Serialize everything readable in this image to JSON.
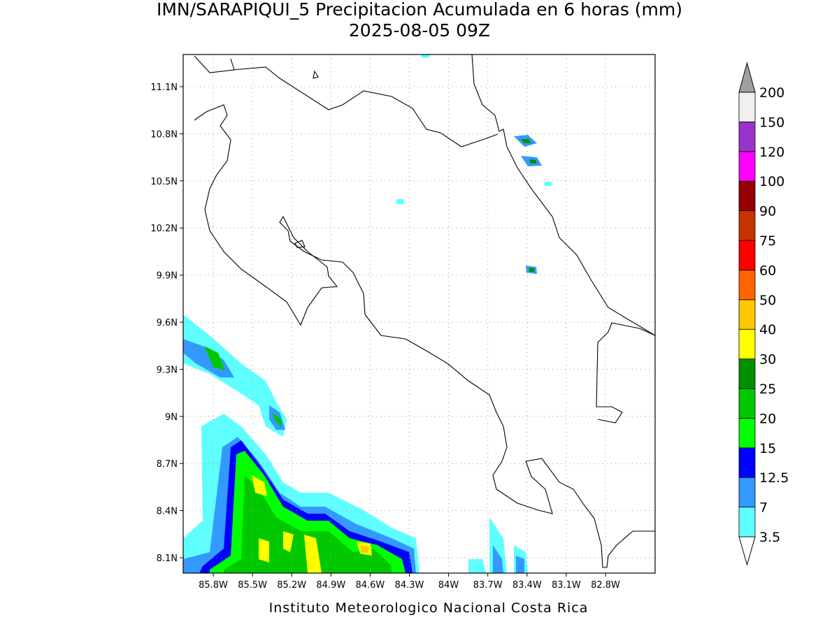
{
  "header": {
    "title": "IMN/SARAPIQUI_5 Precipitacion Acumulada en 6 horas (mm)",
    "subtitle": "2025-08-05 09Z"
  },
  "map": {
    "lat_labels": [
      "11.1N",
      "10.8N",
      "10.5N",
      "10.2N",
      "9.9N",
      "9.6N",
      "9.3N",
      "9N",
      "8.7N",
      "8.4N",
      "8.1N"
    ],
    "lon_labels": [
      "85.8W",
      "85.5W",
      "85.2W",
      "84.9W",
      "84.6W",
      "84.3W",
      "84W",
      "83.7W",
      "83.4W",
      "83.1W",
      "82.8W"
    ]
  },
  "colorbar": {
    "levels": [
      3.5,
      7,
      12.5,
      15,
      20,
      25,
      30,
      40,
      50,
      60,
      75,
      90,
      100,
      120,
      150,
      200
    ],
    "colors": [
      "#ffffff",
      "#5fffff",
      "#3399ff",
      "#0000ff",
      "#00ff00",
      "#00c800",
      "#009000",
      "#ffff00",
      "#ffc800",
      "#ff6400",
      "#ff0000",
      "#c83200",
      "#960000",
      "#ff00ff",
      "#9a32cd",
      "#f0f0f0",
      "#a0a0a0"
    ]
  },
  "footer": "Instituto Meteorologico Nacional Costa Rica"
}
